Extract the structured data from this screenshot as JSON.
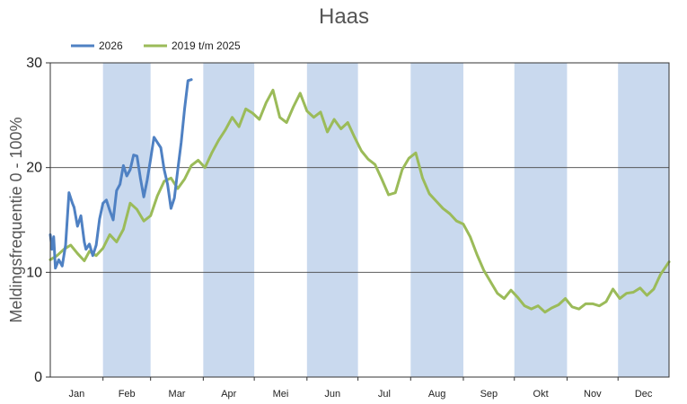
{
  "chart_data": {
    "type": "line",
    "title": "Haas",
    "ylabel": "Meldingsfrequentie 0 - 100%",
    "xlabel": "",
    "ylim": [
      0,
      30
    ],
    "yticks": [
      0,
      10,
      20,
      30
    ],
    "grid": "horizontal",
    "legend_position": "top-left",
    "month_band_color": "#c9d9ee",
    "month_labels": [
      "Jan",
      "Feb",
      "Mar",
      "Apr",
      "Mei",
      "Jun",
      "Jul",
      "Aug",
      "Sep",
      "Okt",
      "Nov",
      "Dec"
    ],
    "shaded_months": [
      "Feb",
      "Apr",
      "Jun",
      "Aug",
      "Okt",
      "Dec"
    ],
    "series": [
      {
        "name": "2026",
        "color": "#4f81c3",
        "x": [
          1,
          2,
          3,
          4,
          6,
          8,
          10,
          12,
          14,
          15,
          17,
          19,
          21,
          22,
          24,
          26,
          28,
          30,
          32,
          34,
          36,
          38,
          40,
          42,
          44,
          46,
          48,
          50,
          52,
          54,
          56,
          58,
          60,
          62,
          64,
          66,
          68,
          70,
          72,
          74,
          76,
          78,
          80,
          82,
          84,
          86,
          88
        ],
        "y": [
          13.6,
          12.2,
          13.4,
          10.4,
          11.2,
          10.6,
          12.6,
          17.6,
          16.6,
          16.2,
          14.4,
          15.4,
          12.9,
          12.2,
          12.7,
          11.6,
          12.6,
          15.1,
          16.6,
          16.9,
          15.9,
          15.0,
          17.8,
          18.4,
          20.2,
          19.2,
          19.8,
          21.2,
          21.1,
          19.0,
          17.2,
          18.8,
          20.8,
          22.9,
          22.4,
          21.9,
          19.8,
          18.4,
          16.1,
          17.1,
          19.8,
          22.4,
          25.6,
          28.3,
          28.4,
          28.3,
          28.2
        ],
        "x_end": 85
      },
      {
        "name": "2019 t/m 2025",
        "color": "#9bbb59",
        "x": [
          1,
          5,
          9,
          13,
          17,
          21,
          24,
          28,
          32,
          36,
          40,
          44,
          48,
          52,
          56,
          60,
          64,
          68,
          72,
          76,
          80,
          84,
          88,
          92,
          96,
          100,
          104,
          108,
          112,
          116,
          120,
          124,
          128,
          132,
          136,
          140,
          144,
          148,
          152,
          156,
          160,
          164,
          168,
          172,
          176,
          180,
          184,
          188,
          192,
          196,
          200,
          204,
          208,
          212,
          216,
          220,
          224,
          228,
          232,
          236,
          240,
          244,
          248,
          252,
          256,
          260,
          264,
          268,
          272,
          276,
          280,
          284,
          288,
          292,
          296,
          300,
          304,
          308,
          312,
          316,
          320,
          324,
          328,
          332,
          336,
          340,
          344,
          348,
          352,
          356,
          360,
          365
        ],
        "y": [
          11.2,
          11.6,
          12.2,
          12.6,
          11.8,
          11.1,
          12.0,
          11.6,
          12.3,
          13.6,
          12.9,
          14.1,
          16.6,
          16.0,
          14.9,
          15.4,
          17.3,
          18.7,
          19.0,
          18.0,
          18.9,
          20.2,
          20.7,
          20.0,
          21.4,
          22.6,
          23.6,
          24.8,
          23.9,
          25.6,
          25.2,
          24.6,
          26.2,
          27.4,
          24.8,
          24.3,
          25.8,
          27.1,
          25.4,
          24.8,
          25.3,
          23.4,
          24.6,
          23.7,
          24.3,
          22.9,
          21.6,
          20.8,
          20.3,
          18.9,
          17.4,
          17.6,
          19.8,
          20.9,
          21.4,
          19.0,
          17.5,
          16.8,
          16.1,
          15.6,
          14.9,
          14.6,
          13.4,
          11.7,
          10.2,
          9.1,
          8.0,
          7.5,
          8.3,
          7.6,
          6.8,
          6.5,
          6.8,
          6.2,
          6.6,
          6.9,
          7.5,
          6.7,
          6.5,
          7.0,
          7.0,
          6.8,
          7.2,
          8.4,
          7.5,
          8.0,
          8.1,
          8.5,
          7.8,
          8.4,
          9.8,
          11.0
        ],
        "x_end": 365
      }
    ]
  }
}
